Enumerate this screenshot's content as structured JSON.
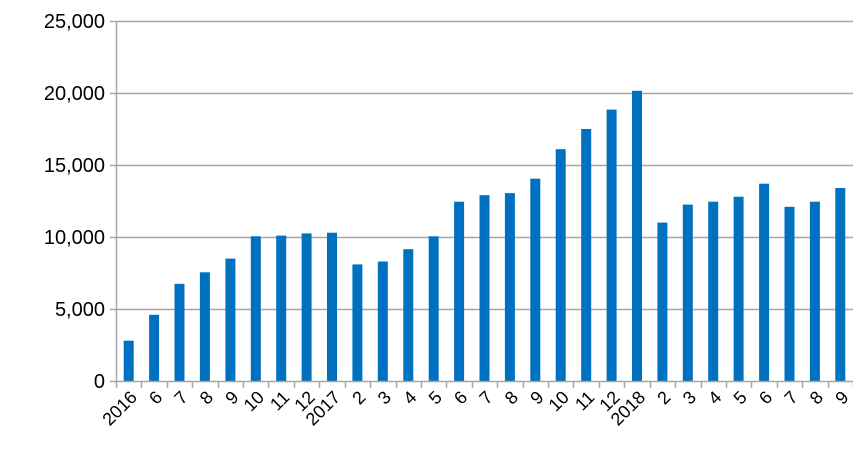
{
  "chart_data": {
    "type": "bar",
    "title": "",
    "xlabel": "",
    "ylabel": "",
    "ylim": [
      0,
      25000
    ],
    "yticks": [
      "0",
      "5,000",
      "10,000",
      "15,000",
      "20,000",
      "25,000"
    ],
    "yticks_values": [
      0,
      5000,
      10000,
      15000,
      20000,
      25000
    ],
    "grid": true,
    "bar_color": "#0070C0",
    "grid_color": "#A6A6A6",
    "categories": [
      "2016",
      "6",
      "7",
      "8",
      "9",
      "10",
      "11",
      "12",
      "2017",
      "2",
      "3",
      "4",
      "5",
      "6",
      "7",
      "8",
      "9",
      "10",
      "11",
      "12",
      "2018",
      "2",
      "3",
      "4",
      "5",
      "6",
      "7",
      "8",
      "9"
    ],
    "series": [
      {
        "values": [
          2800,
          4600,
          6750,
          7550,
          8500,
          10050,
          10100,
          10250,
          10300,
          8100,
          8300,
          9150,
          10050,
          12450,
          12900,
          13050,
          14050,
          16100,
          17500,
          18850,
          20150,
          11000,
          12250,
          12450,
          12800,
          13700,
          12100,
          12450,
          13400
        ]
      }
    ]
  }
}
